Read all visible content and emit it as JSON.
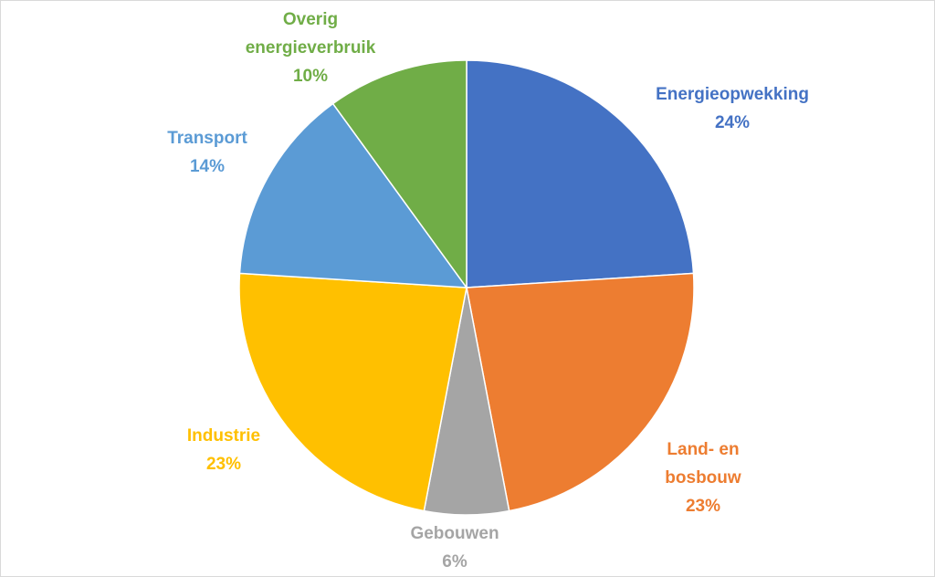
{
  "chart_data": {
    "type": "pie",
    "title": "",
    "slices": [
      {
        "name": "Energieopwekking",
        "value": 24,
        "label": "24%",
        "color": "#4472c4"
      },
      {
        "name": "Land- en bosbouw",
        "value": 23,
        "label": "23%",
        "color": "#ed7d31"
      },
      {
        "name": "Gebouwen",
        "value": 6,
        "label": "6%",
        "color": "#a5a5a5"
      },
      {
        "name": "Industrie",
        "value": 23,
        "label": "23%",
        "color": "#ffc000"
      },
      {
        "name": "Transport",
        "value": 14,
        "label": "14%",
        "color": "#5b9bd5"
      },
      {
        "name": "Overig energieverbruik",
        "value": 10,
        "label": "10%",
        "color": "#70ad47"
      }
    ],
    "legend": "none",
    "data_labels": "outside"
  }
}
